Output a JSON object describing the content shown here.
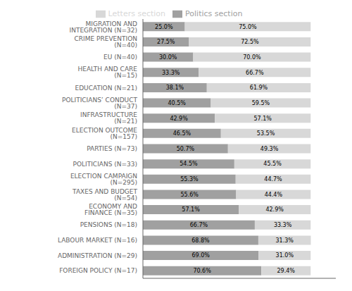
{
  "chart_data": {
    "type": "bar",
    "orientation": "horizontal",
    "stacked": true,
    "categories": [
      "MIGRATION AND INTEGRATION (N=32)",
      "CRIME PREVENTION (N=40)",
      "EU (N=40)",
      "HEALTH AND CARE (N=15)",
      "EDUCATION (N=21)",
      "POLITICIANS’ CONDUCT (N=37)",
      "INFRASTRUCTURE (N=21)",
      "ELECTION OUTCOME (N=157)",
      "PARTIES (N=73)",
      "POLITICIANS (N=33)",
      "ELECTION CAMPAIGN (N=295)",
      "TAXES AND BUDGET (N=54)",
      "ECONOMY AND FINANCE (N=35)",
      "PENSIONS (N=18)",
      "LABOUR MARKET (N=16)",
      "ADMINISTRATION (N=29)",
      "FOREIGN POLICY (N=17)"
    ],
    "series": [
      {
        "name": "Politics section",
        "color": "#a0a0a0",
        "values": [
          25.0,
          27.5,
          30.0,
          33.3,
          38.1,
          40.5,
          42.9,
          46.5,
          50.7,
          54.5,
          55.3,
          55.6,
          57.1,
          66.7,
          68.8,
          69.0,
          70.6
        ],
        "value_labels": [
          "25.0%",
          "27.5%",
          "30.0%",
          "33.3%",
          "38.1%",
          "40.5%",
          "42.9%",
          "46.5%",
          "50.7%",
          "54.5%",
          "55.3%",
          "55.6%",
          "57.1%",
          "66.7%",
          "68.8%",
          "69.0%",
          "70.6%"
        ]
      },
      {
        "name": "Letters section",
        "color": "#d8d8d8",
        "values": [
          75.0,
          72.5,
          70.0,
          66.7,
          61.9,
          59.5,
          57.1,
          53.5,
          49.3,
          45.5,
          44.7,
          44.4,
          42.9,
          33.3,
          31.3,
          31.0,
          29.4
        ],
        "value_labels": [
          "75.0%",
          "72.5%",
          "70.0%",
          "66.7%",
          "61.9%",
          "59.5%",
          "57.1%",
          "53.5%",
          "49.3%",
          "45.5%",
          "44.7%",
          "44.4%",
          "42.9%",
          "33.3%",
          "31.3%",
          "31.0%",
          "29.4%"
        ]
      }
    ],
    "xlim": [
      0,
      115
    ],
    "xticks": [],
    "data_labels": true,
    "tick_labels": "y",
    "legend": "top",
    "grid": false
  }
}
